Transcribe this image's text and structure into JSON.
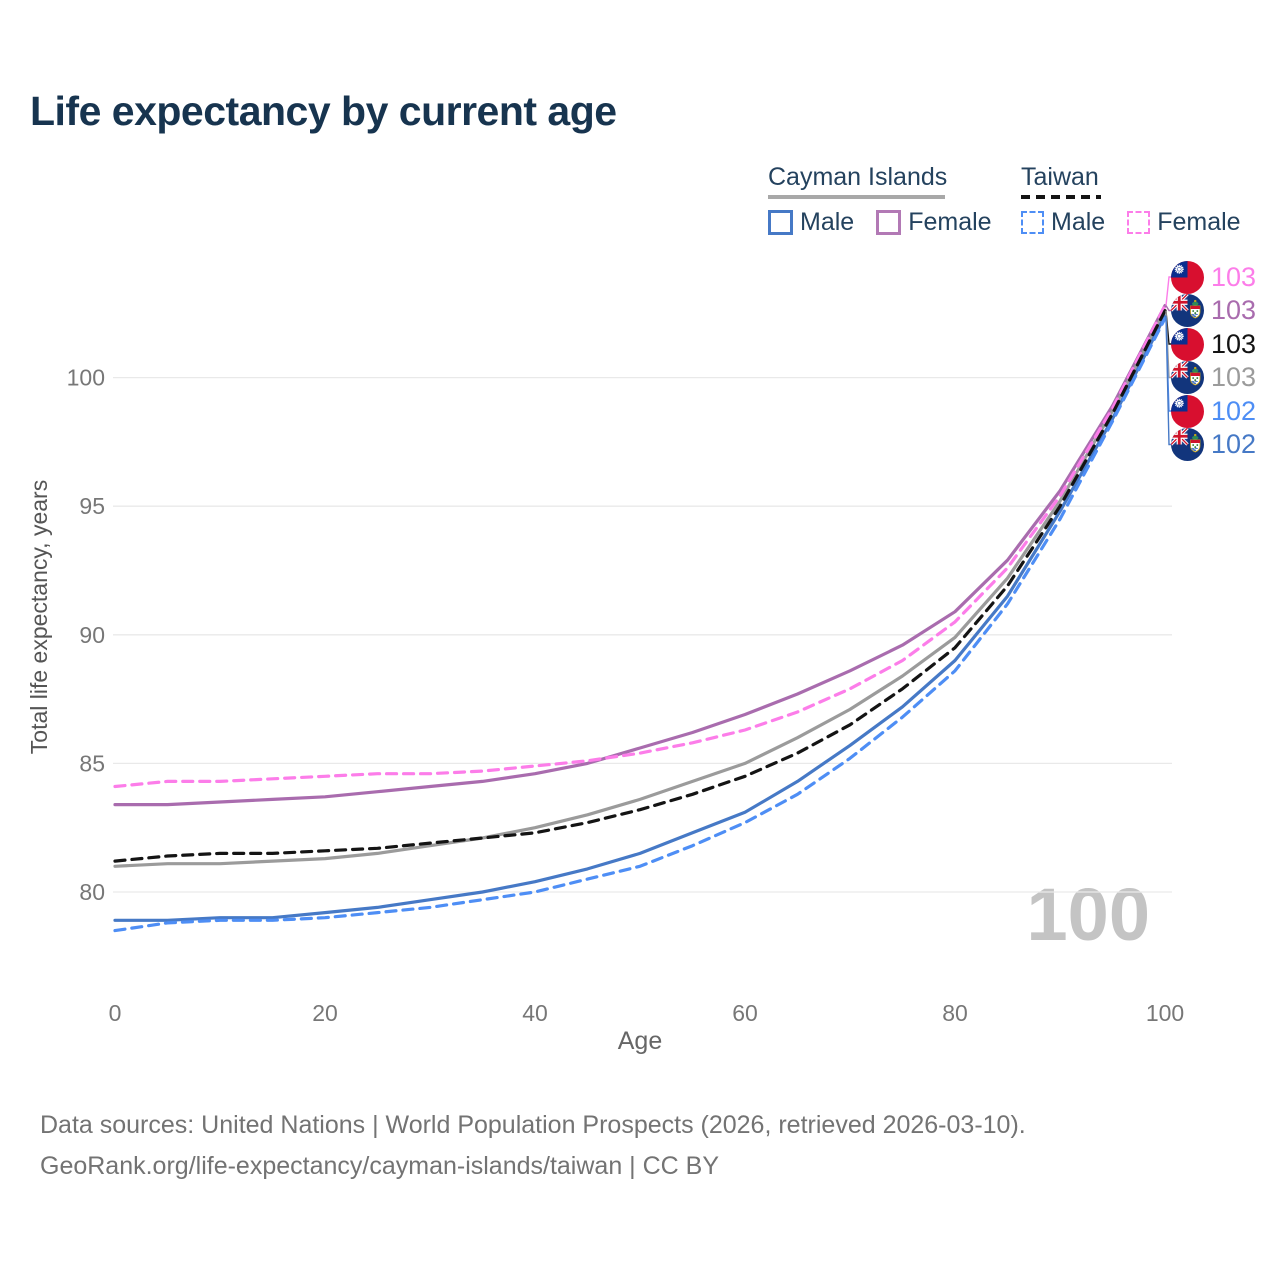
{
  "title": "Life expectancy by current age",
  "legend": {
    "groups": [
      {
        "label": "Cayman Islands",
        "line_style": "solid",
        "header_underline_color": "#a8a8a8",
        "items": [
          {
            "label": "Male",
            "color": "#4679c6"
          },
          {
            "label": "Female",
            "color": "#b279b5"
          }
        ]
      },
      {
        "label": "Taiwan",
        "line_style": "dashed",
        "header_underline_color": "#141414",
        "items": [
          {
            "label": "Male",
            "color": "#4e8ef5"
          },
          {
            "label": "Female",
            "color": "#fc7de9"
          }
        ]
      }
    ]
  },
  "watermark_age": "100",
  "footer": {
    "line1": "Data sources: United Nations | World Population Prospects (2026, retrieved 2026-03-10).",
    "line2": "GeoRank.org/life-expectancy/cayman-islands/taiwan | CC BY"
  },
  "chart_data": {
    "type": "line",
    "title": "Life expectancy by current age",
    "xlabel": "Age",
    "ylabel": "Total life expectancy, years",
    "x_ticks": [
      0,
      20,
      40,
      60,
      80,
      100
    ],
    "y_ticks": [
      80,
      85,
      90,
      95,
      100
    ],
    "xlim": [
      0,
      100
    ],
    "ylim": [
      77.5,
      104
    ],
    "grid": "horizontal",
    "legend_position": "top-right",
    "x": [
      0,
      5,
      10,
      15,
      20,
      25,
      30,
      35,
      40,
      45,
      50,
      55,
      60,
      65,
      70,
      75,
      80,
      85,
      90,
      95,
      100
    ],
    "series": [
      {
        "name": "Taiwan — Female",
        "country": "Taiwan",
        "sex": "Female",
        "dashed": true,
        "color": "#fc7de9",
        "end_label": "103",
        "values": [
          84.1,
          84.3,
          84.3,
          84.4,
          84.5,
          84.6,
          84.6,
          84.7,
          84.9,
          85.1,
          85.4,
          85.8,
          86.3,
          87.0,
          87.9,
          89.0,
          90.5,
          92.6,
          95.4,
          98.8,
          102.8
        ]
      },
      {
        "name": "Cayman Islands — Female",
        "country": "Cayman Islands",
        "sex": "Female",
        "dashed": false,
        "color": "#a96cae",
        "end_label": "103",
        "values": [
          83.4,
          83.4,
          83.5,
          83.6,
          83.7,
          83.9,
          84.1,
          84.3,
          84.6,
          85.0,
          85.6,
          86.2,
          86.9,
          87.7,
          88.6,
          89.6,
          90.9,
          92.9,
          95.6,
          98.9,
          102.8
        ]
      },
      {
        "name": "Taiwan — Both sexes",
        "country": "Taiwan",
        "sex": "Both",
        "dashed": true,
        "color": "#141414",
        "end_label": "103",
        "values": [
          81.2,
          81.4,
          81.5,
          81.5,
          81.6,
          81.7,
          81.9,
          82.1,
          82.3,
          82.7,
          83.2,
          83.8,
          84.5,
          85.4,
          86.5,
          87.9,
          89.5,
          91.9,
          95.0,
          98.6,
          102.6
        ]
      },
      {
        "name": "Cayman Islands — Both sexes",
        "country": "Cayman Islands",
        "sex": "Both",
        "dashed": false,
        "color": "#9b9b9b",
        "end_label": "103",
        "values": [
          81.0,
          81.1,
          81.1,
          81.2,
          81.3,
          81.5,
          81.8,
          82.1,
          82.5,
          83.0,
          83.6,
          84.3,
          85.0,
          86.0,
          87.1,
          88.4,
          89.9,
          92.2,
          95.2,
          98.7,
          102.6
        ]
      },
      {
        "name": "Taiwan — Male",
        "country": "Taiwan",
        "sex": "Male",
        "dashed": true,
        "color": "#4e8ef5",
        "end_label": "102",
        "values": [
          78.5,
          78.8,
          78.9,
          78.9,
          79.0,
          79.2,
          79.4,
          79.7,
          80.0,
          80.5,
          81.0,
          81.8,
          82.7,
          83.8,
          85.2,
          86.8,
          88.6,
          91.2,
          94.5,
          98.3,
          102.3
        ]
      },
      {
        "name": "Cayman Islands — Male",
        "country": "Cayman Islands",
        "sex": "Male",
        "dashed": false,
        "color": "#4679c6",
        "end_label": "102",
        "values": [
          78.9,
          78.9,
          79.0,
          79.0,
          79.2,
          79.4,
          79.7,
          80.0,
          80.4,
          80.9,
          81.5,
          82.3,
          83.1,
          84.3,
          85.7,
          87.2,
          89.0,
          91.5,
          94.8,
          98.4,
          102.4
        ]
      }
    ],
    "end_labels": [
      {
        "flag": "taiwan",
        "value": "103",
        "color": "#fc7de9",
        "series_index": 0
      },
      {
        "flag": "cayman-islands",
        "value": "103",
        "color": "#a96cae",
        "series_index": 1
      },
      {
        "flag": "taiwan",
        "value": "103",
        "color": "#141414",
        "series_index": 2
      },
      {
        "flag": "cayman-islands",
        "value": "103",
        "color": "#9b9b9b",
        "series_index": 3
      },
      {
        "flag": "taiwan",
        "value": "102",
        "color": "#4e8ef5",
        "series_index": 4
      },
      {
        "flag": "cayman-islands",
        "value": "102",
        "color": "#4679c6",
        "series_index": 5
      }
    ]
  }
}
